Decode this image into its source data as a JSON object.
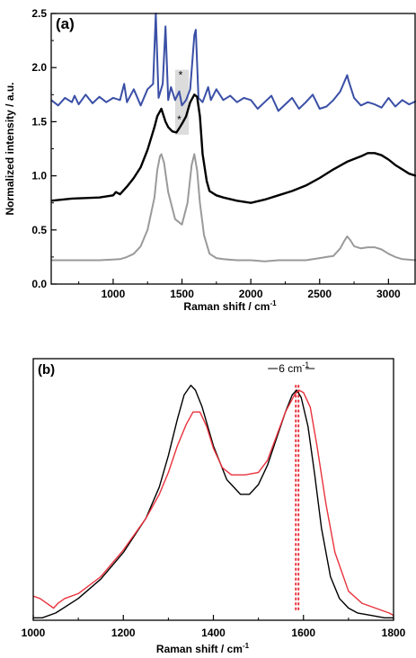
{
  "chart_data": [
    {
      "type": "line",
      "panel_label": "(a)",
      "xlabel": "Raman shift / cm",
      "xlabel_sup": "-1",
      "ylabel": "Normalized intensity / a.u.",
      "xlim": [
        550,
        3200
      ],
      "ylim": [
        0,
        2.5
      ],
      "xticks": [
        1000,
        1500,
        2000,
        2500,
        3000
      ],
      "yticks": [
        0.0,
        0.5,
        1.0,
        1.5,
        2.0,
        2.5
      ],
      "ytick_labels": [
        "0.0",
        "0.5",
        "1.0",
        "1.5",
        "2.0",
        "2.5"
      ],
      "grid": false,
      "highlight_band": [
        1450,
        1550
      ],
      "annotations": [
        {
          "text": "*",
          "x": 1490,
          "y": 1.93
        },
        {
          "text": "*",
          "x": 1480,
          "y": 1.52
        }
      ],
      "series": [
        {
          "color": "#3a4fa6",
          "x": [
            550,
            600,
            650,
            700,
            720,
            750,
            800,
            850,
            900,
            950,
            1000,
            1050,
            1080,
            1100,
            1150,
            1200,
            1250,
            1290,
            1310,
            1330,
            1360,
            1380,
            1400,
            1420,
            1450,
            1480,
            1500,
            1530,
            1560,
            1590,
            1600,
            1620,
            1650,
            1690,
            1710,
            1750,
            1800,
            1850,
            1900,
            1950,
            2000,
            2050,
            2100,
            2150,
            2200,
            2250,
            2300,
            2350,
            2400,
            2450,
            2500,
            2550,
            2600,
            2650,
            2690,
            2700,
            2710,
            2750,
            2800,
            2850,
            2900,
            2950,
            3000,
            3050,
            3100,
            3150,
            3200
          ],
          "y": [
            1.7,
            1.65,
            1.72,
            1.68,
            1.74,
            1.66,
            1.75,
            1.67,
            1.73,
            1.68,
            1.72,
            1.7,
            1.85,
            1.68,
            1.8,
            1.65,
            1.8,
            1.85,
            2.5,
            1.72,
            1.85,
            2.38,
            1.7,
            1.82,
            1.7,
            1.78,
            1.65,
            1.7,
            1.8,
            2.3,
            2.35,
            1.72,
            1.68,
            1.82,
            1.7,
            1.8,
            1.7,
            1.74,
            1.68,
            1.72,
            1.7,
            1.62,
            1.68,
            1.74,
            1.6,
            1.66,
            1.72,
            1.62,
            1.68,
            1.75,
            1.62,
            1.64,
            1.7,
            1.78,
            1.9,
            1.93,
            1.88,
            1.72,
            1.65,
            1.68,
            1.66,
            1.63,
            1.72,
            1.64,
            1.7,
            1.66,
            1.69
          ]
        },
        {
          "color": "#000000",
          "x": [
            550,
            700,
            900,
            1000,
            1020,
            1050,
            1100,
            1150,
            1200,
            1250,
            1300,
            1320,
            1350,
            1380,
            1400,
            1430,
            1460,
            1480,
            1500,
            1530,
            1560,
            1590,
            1610,
            1630,
            1650,
            1680,
            1700,
            1750,
            1800,
            1900,
            2000,
            2100,
            2200,
            2300,
            2400,
            2500,
            2600,
            2700,
            2800,
            2850,
            2900,
            2950,
            3000,
            3050,
            3100,
            3150,
            3200
          ],
          "y": [
            0.77,
            0.79,
            0.8,
            0.82,
            0.85,
            0.83,
            0.9,
            0.98,
            1.08,
            1.24,
            1.45,
            1.55,
            1.62,
            1.5,
            1.45,
            1.41,
            1.4,
            1.44,
            1.48,
            1.55,
            1.68,
            1.75,
            1.73,
            1.55,
            1.2,
            0.95,
            0.86,
            0.82,
            0.8,
            0.77,
            0.75,
            0.78,
            0.82,
            0.86,
            0.91,
            0.98,
            1.06,
            1.13,
            1.18,
            1.21,
            1.21,
            1.19,
            1.15,
            1.1,
            1.06,
            1.02,
            1.0
          ]
        },
        {
          "color": "#9a9a9a",
          "x": [
            550,
            700,
            900,
            1050,
            1100,
            1150,
            1200,
            1250,
            1300,
            1320,
            1340,
            1350,
            1370,
            1400,
            1450,
            1500,
            1540,
            1570,
            1590,
            1610,
            1630,
            1660,
            1700,
            1750,
            1800,
            1900,
            2000,
            2100,
            2200,
            2300,
            2400,
            2500,
            2550,
            2600,
            2650,
            2680,
            2700,
            2720,
            2750,
            2800,
            2850,
            2900,
            2950,
            3000,
            3050,
            3100,
            3200
          ],
          "y": [
            0.22,
            0.22,
            0.22,
            0.23,
            0.25,
            0.28,
            0.35,
            0.5,
            0.8,
            1.05,
            1.18,
            1.2,
            1.12,
            0.85,
            0.6,
            0.55,
            0.75,
            1.1,
            1.2,
            1.05,
            0.75,
            0.45,
            0.28,
            0.24,
            0.23,
            0.22,
            0.22,
            0.21,
            0.22,
            0.22,
            0.22,
            0.24,
            0.25,
            0.26,
            0.33,
            0.4,
            0.44,
            0.41,
            0.35,
            0.33,
            0.34,
            0.34,
            0.32,
            0.28,
            0.25,
            0.23,
            0.22
          ]
        }
      ]
    },
    {
      "type": "line",
      "panel_label": "(b)",
      "xlabel": "Raman shift / cm",
      "xlabel_sup": "-1",
      "ylabel": "",
      "xlim": [
        1000,
        1800
      ],
      "ylim": [
        0,
        1.08
      ],
      "xticks": [
        1000,
        1200,
        1400,
        1600,
        1800
      ],
      "grid": false,
      "annotations": [
        {
          "text": "6 cm",
          "sup": "-1",
          "type": "shift-marker",
          "x_from": 1583,
          "x_to": 1589
        }
      ],
      "vlines": [
        {
          "x": 1583,
          "color": "#e8323c",
          "style": "dotted"
        },
        {
          "x": 1589,
          "color": "#e8323c",
          "style": "dotted"
        }
      ],
      "series": [
        {
          "color": "#000000",
          "x": [
            1000,
            1020,
            1050,
            1100,
            1150,
            1200,
            1250,
            1280,
            1300,
            1320,
            1335,
            1350,
            1360,
            1375,
            1400,
            1430,
            1460,
            1480,
            1500,
            1520,
            1540,
            1560,
            1575,
            1585,
            1595,
            1610,
            1625,
            1640,
            1660,
            1680,
            1700,
            1720,
            1750,
            1780,
            1800
          ],
          "y": [
            0.01,
            0.01,
            0.03,
            0.09,
            0.17,
            0.28,
            0.42,
            0.55,
            0.68,
            0.83,
            0.93,
            0.97,
            0.95,
            0.88,
            0.72,
            0.58,
            0.52,
            0.52,
            0.56,
            0.64,
            0.75,
            0.86,
            0.93,
            0.95,
            0.92,
            0.8,
            0.6,
            0.38,
            0.18,
            0.09,
            0.05,
            0.03,
            0.02,
            0.01,
            0.01
          ]
        },
        {
          "color": "#e8323c",
          "x": [
            1000,
            1015,
            1030,
            1045,
            1055,
            1070,
            1100,
            1150,
            1200,
            1250,
            1280,
            1300,
            1320,
            1340,
            1355,
            1370,
            1385,
            1400,
            1420,
            1440,
            1470,
            1500,
            1520,
            1540,
            1560,
            1580,
            1590,
            1600,
            1615,
            1630,
            1650,
            1670,
            1700,
            1730,
            1760,
            1790,
            1800
          ],
          "y": [
            0.1,
            0.09,
            0.07,
            0.05,
            0.07,
            0.09,
            0.11,
            0.18,
            0.29,
            0.42,
            0.52,
            0.61,
            0.72,
            0.81,
            0.86,
            0.86,
            0.8,
            0.71,
            0.63,
            0.6,
            0.6,
            0.61,
            0.66,
            0.76,
            0.86,
            0.93,
            0.95,
            0.94,
            0.88,
            0.72,
            0.48,
            0.28,
            0.12,
            0.07,
            0.05,
            0.03,
            0.02
          ]
        }
      ]
    }
  ]
}
